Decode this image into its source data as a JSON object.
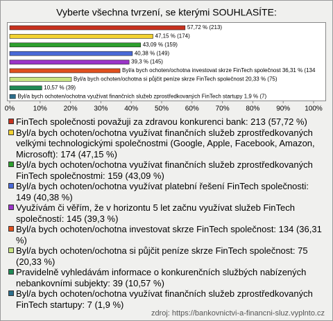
{
  "chart_data": {
    "type": "bar",
    "orientation": "horizontal",
    "title": "Vyberte všechna tvrzení, se kterými SOUHLASÍTE:",
    "categories": [
      "FinTech společnosti považuji za zdravou konkurenci bank: 213 (57,72 %)",
      "Byl/a bych ochoten/ochotna využívat finančních služeb zprostředkovaných velkými technologickými společnostmi (Google, Apple, Facebook, Amazon, Microsoft): 174 (47,15 %)",
      "Byl/a bych ochoten/ochotna využívat finančních služeb zprostředkovaných FinTech společnostmi: 159 (43,09 %)",
      "Byl/a bych ochoten/ochotna využívat platební řešení FinTech společnosti: 149 (40,38 %)",
      "Využívám či věřím, že v horizontu 5 let začnu využívat služeb FinTech společností: 145 (39,3 %)",
      "Byl/a bych ochoten/ochotna investovat skrze FinTech společnost: 134 (36,31 %)",
      "Byl/a bych ochoten/ochotna si půjčit peníze skrze FinTech společnost: 75 (20,33 %)",
      "Pravidelně vyhledávám informace o konkurenčních službých nabízených nebankovními subjekty: 39 (10,57 %)",
      "Byl/a bych ochoten/ochotna využívat finančních služeb zprostředkovaných FinTech startupy: 7 (1,9 %)"
    ],
    "values": [
      57.72,
      47.15,
      43.09,
      40.38,
      39.3,
      36.31,
      20.33,
      10.57,
      1.9
    ],
    "value_labels": [
      "57,72 % (213)",
      "47,15 % (174)",
      "43,09 % (159)",
      "40,38 % (149)",
      "39,3 % (145)",
      "Byl/a bych ochoten/ochotna investovat skrze FinTech společnost 36,31 % (134",
      "Byl/a bych ochoten/ochotna si půjčit peníze skrze FinTech společnost 20,33 % (75)",
      "10,57 % (39)",
      "Byl/a bych ochoten/ochotna využívat finančních služeb zprostředkovaných FinTech startupy 1,9 % (7)"
    ],
    "colors": [
      "#c8321e",
      "#f2d232",
      "#2ea02e",
      "#4a6ad8",
      "#9a34c8",
      "#e0501e",
      "#c8e482",
      "#1f8a55",
      "#2c6e8c"
    ],
    "xlim": [
      0,
      100
    ],
    "xticks": [
      {
        "value": 0,
        "label": "0%"
      },
      {
        "value": 10,
        "label": "10%"
      },
      {
        "value": 20,
        "label": "20%"
      },
      {
        "value": 30,
        "label": "30%"
      },
      {
        "value": 40,
        "label": "40%"
      },
      {
        "value": 50,
        "label": "50%"
      },
      {
        "value": 60,
        "label": "60%"
      },
      {
        "value": 70,
        "label": "70%"
      },
      {
        "value": 80,
        "label": "80%"
      },
      {
        "value": 90,
        "label": "90%"
      },
      {
        "value": 100,
        "label": "100%"
      }
    ],
    "grid": false,
    "source": "zdroj: https://bankovnictvi-a-financni-sluz.vyplnto.cz"
  }
}
